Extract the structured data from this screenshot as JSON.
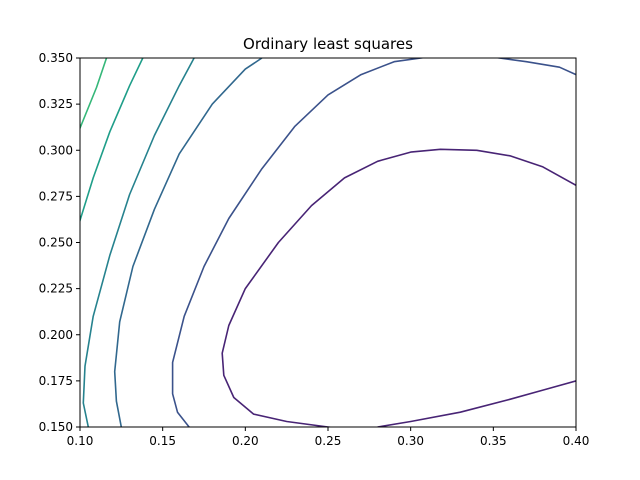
{
  "chart_data": {
    "type": "contour",
    "title": "Ordinary least squares",
    "xlabel": "",
    "ylabel": "",
    "xlim": [
      0.1,
      0.4
    ],
    "ylim": [
      0.15,
      0.35
    ],
    "xticks": [
      "0.10",
      "0.15",
      "0.20",
      "0.25",
      "0.30",
      "0.35",
      "0.40"
    ],
    "yticks": [
      "0.150",
      "0.175",
      "0.200",
      "0.225",
      "0.250",
      "0.275",
      "0.300",
      "0.325",
      "0.350"
    ],
    "grid": false,
    "levels": [
      {
        "color": "#482475",
        "points": [
          [
            0.4,
            0.281
          ],
          [
            0.38,
            0.291
          ],
          [
            0.36,
            0.297
          ],
          [
            0.34,
            0.3
          ],
          [
            0.318,
            0.3005
          ],
          [
            0.3,
            0.299
          ],
          [
            0.28,
            0.294
          ],
          [
            0.26,
            0.285
          ],
          [
            0.24,
            0.27
          ],
          [
            0.22,
            0.25
          ],
          [
            0.2,
            0.225
          ],
          [
            0.19,
            0.205
          ],
          [
            0.186,
            0.19
          ],
          [
            0.187,
            0.178
          ],
          [
            0.193,
            0.166
          ],
          [
            0.205,
            0.157
          ],
          [
            0.225,
            0.153
          ],
          [
            0.25,
            0.15
          ],
          [
            0.27,
            0.148
          ]
        ]
      },
      {
        "color": "#482475",
        "points": [
          [
            0.28,
            0.15
          ],
          [
            0.3,
            0.153
          ],
          [
            0.33,
            0.158
          ],
          [
            0.36,
            0.165
          ],
          [
            0.38,
            0.17
          ],
          [
            0.4,
            0.175
          ]
        ]
      },
      {
        "color": "#3b528b",
        "points": [
          [
            0.4,
            0.341
          ],
          [
            0.39,
            0.345
          ],
          [
            0.37,
            0.348
          ],
          [
            0.35,
            0.3505
          ],
          [
            0.33,
            0.351
          ],
          [
            0.31,
            0.3505
          ],
          [
            0.29,
            0.348
          ],
          [
            0.27,
            0.341
          ],
          [
            0.25,
            0.33
          ],
          [
            0.23,
            0.313
          ],
          [
            0.21,
            0.29
          ],
          [
            0.19,
            0.263
          ],
          [
            0.175,
            0.237
          ],
          [
            0.163,
            0.21
          ],
          [
            0.156,
            0.185
          ],
          [
            0.156,
            0.168
          ],
          [
            0.159,
            0.158
          ],
          [
            0.166,
            0.15
          ]
        ]
      },
      {
        "color": "#31688e",
        "points": [
          [
            0.21,
            0.35
          ],
          [
            0.2,
            0.344
          ],
          [
            0.18,
            0.325
          ],
          [
            0.16,
            0.298
          ],
          [
            0.145,
            0.268
          ],
          [
            0.132,
            0.237
          ],
          [
            0.124,
            0.207
          ],
          [
            0.121,
            0.18
          ],
          [
            0.122,
            0.164
          ],
          [
            0.125,
            0.15
          ]
        ]
      },
      {
        "color": "#26828e",
        "points": [
          [
            0.169,
            0.35
          ],
          [
            0.16,
            0.335
          ],
          [
            0.145,
            0.308
          ],
          [
            0.13,
            0.276
          ],
          [
            0.118,
            0.243
          ],
          [
            0.108,
            0.21
          ],
          [
            0.103,
            0.183
          ],
          [
            0.102,
            0.163
          ],
          [
            0.105,
            0.15
          ]
        ]
      },
      {
        "color": "#1f9e89",
        "points": [
          [
            0.138,
            0.35
          ],
          [
            0.13,
            0.335
          ],
          [
            0.118,
            0.31
          ],
          [
            0.108,
            0.285
          ],
          [
            0.1,
            0.262
          ],
          [
            0.094,
            0.242
          ]
        ]
      },
      {
        "color": "#35b779",
        "points": [
          [
            0.116,
            0.35
          ],
          [
            0.11,
            0.334
          ],
          [
            0.1,
            0.312
          ],
          [
            0.093,
            0.296
          ]
        ]
      },
      {
        "color": "#6ece58",
        "points": [
          [
            0.095,
            0.35
          ]
        ]
      }
    ]
  }
}
